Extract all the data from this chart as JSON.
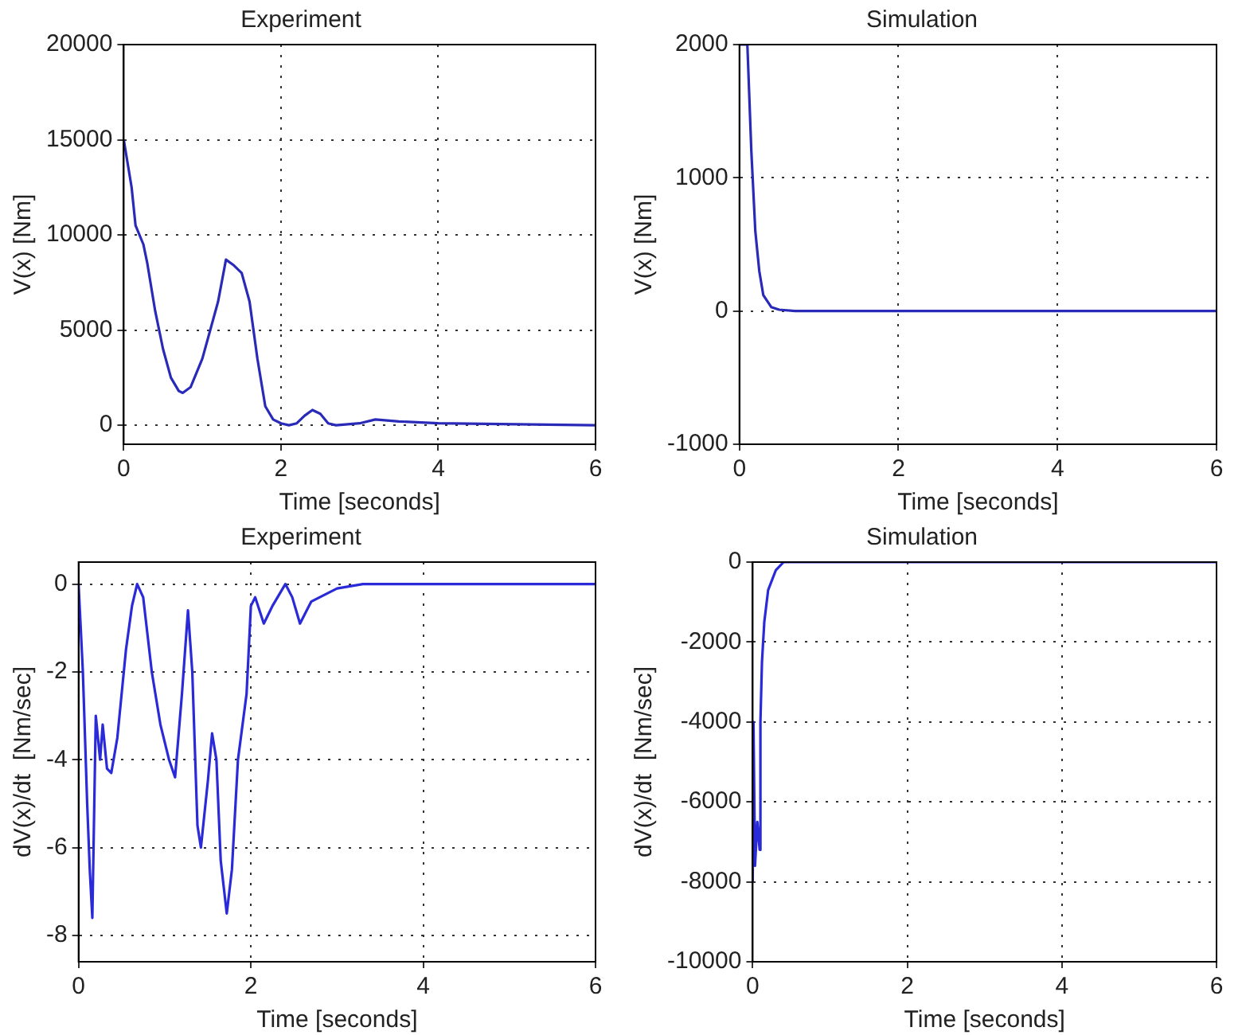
{
  "chart_data": [
    {
      "type": "line",
      "title": "Experiment",
      "xlabel": "Time [seconds]",
      "ylabel": "V(x) [Nm]",
      "xlim": [
        0,
        6
      ],
      "xticks": [
        0,
        2,
        4,
        6
      ],
      "ylim": [
        -1000,
        20000
      ],
      "yticks": [
        0,
        5000,
        10000,
        15000,
        20000
      ],
      "grid": true,
      "marker": "none",
      "series": [
        {
          "color": "#2a2ab8",
          "x": [
            0,
            0.1,
            0.15,
            0.25,
            0.3,
            0.4,
            0.5,
            0.6,
            0.7,
            0.75,
            0.85,
            1.0,
            1.1,
            1.2,
            1.3,
            1.4,
            1.5,
            1.6,
            1.7,
            1.8,
            1.9,
            2.0,
            2.1,
            2.2,
            2.3,
            2.4,
            2.5,
            2.6,
            2.7,
            3.0,
            3.2,
            3.5,
            4,
            5,
            6
          ],
          "values": [
            15000,
            12500,
            10500,
            9500,
            8500,
            6000,
            4000,
            2500,
            1800,
            1700,
            2000,
            3500,
            5000,
            6500,
            8700,
            8400,
            8000,
            6500,
            3500,
            1000,
            300,
            100,
            0,
            100,
            500,
            800,
            600,
            100,
            0,
            100,
            300,
            200,
            100,
            50,
            0
          ]
        }
      ]
    },
    {
      "type": "line",
      "title": "Simulation",
      "xlabel": "Time [seconds]",
      "ylabel": "V(x) [Nm]",
      "xlim": [
        0,
        6
      ],
      "xticks": [
        0,
        2,
        4,
        6
      ],
      "ylim": [
        -1000,
        2000
      ],
      "yticks": [
        -1000,
        0,
        1000,
        2000
      ],
      "grid": true,
      "marker": "none",
      "series": [
        {
          "color": "#2a2ab8",
          "x": [
            0,
            0.1,
            0.15,
            0.2,
            0.25,
            0.3,
            0.4,
            0.5,
            0.7,
            6
          ],
          "values": [
            2000,
            2000,
            1200,
            600,
            300,
            120,
            30,
            10,
            0,
            0
          ]
        }
      ]
    },
    {
      "type": "line",
      "title": "Experiment",
      "xlabel": "Time [seconds]",
      "ylabel": "dV(x)/dt  [Nm/sec]",
      "xlim": [
        0,
        6
      ],
      "xticks": [
        0,
        2,
        4,
        6
      ],
      "ylim": [
        -8.6,
        0.5
      ],
      "yticks": [
        -8,
        -6,
        -4,
        -2,
        0
      ],
      "grid": true,
      "marker": "none",
      "series": [
        {
          "color": "#2a2ad8",
          "x": [
            0,
            0.05,
            0.1,
            0.13,
            0.16,
            0.2,
            0.25,
            0.28,
            0.33,
            0.38,
            0.45,
            0.55,
            0.62,
            0.68,
            0.75,
            0.85,
            0.95,
            1.05,
            1.12,
            1.2,
            1.27,
            1.32,
            1.38,
            1.42,
            1.5,
            1.55,
            1.6,
            1.65,
            1.72,
            1.78,
            1.85,
            1.95,
            2.0,
            2.05,
            2.15,
            2.25,
            2.4,
            2.48,
            2.57,
            2.7,
            3.0,
            3.3,
            6
          ],
          "values": [
            0,
            -2,
            -5,
            -6.5,
            -7.6,
            -3,
            -4,
            -3.2,
            -4.2,
            -4.3,
            -3.5,
            -1.5,
            -0.5,
            0,
            -0.3,
            -2,
            -3.2,
            -4,
            -4.4,
            -2.5,
            -0.6,
            -2,
            -5.5,
            -6,
            -4.5,
            -3.4,
            -4,
            -6.3,
            -7.5,
            -6.5,
            -4,
            -2.5,
            -0.5,
            -0.3,
            -0.9,
            -0.5,
            0,
            -0.3,
            -0.9,
            -0.4,
            -0.1,
            0,
            0
          ]
        }
      ]
    },
    {
      "type": "line",
      "title": "Simulation",
      "xlabel": "Time [seconds]",
      "ylabel": "dV(x)/dt  [Nm/sec]",
      "xlim": [
        0,
        6
      ],
      "xticks": [
        0,
        2,
        4,
        6
      ],
      "ylim": [
        -10000,
        0
      ],
      "yticks": [
        -10000,
        -8000,
        -6000,
        -4000,
        -2000,
        0
      ],
      "grid": true,
      "marker": "none",
      "series": [
        {
          "color": "#2a2ad8",
          "x": [
            0,
            0.01,
            0.03,
            0.06,
            0.09,
            0.1,
            0.12,
            0.15,
            0.2,
            0.3,
            0.4,
            6
          ],
          "values": [
            -8000,
            -4000,
            -7600,
            -6500,
            -7200,
            -4000,
            -2500,
            -1500,
            -700,
            -200,
            0,
            0
          ]
        }
      ]
    }
  ]
}
